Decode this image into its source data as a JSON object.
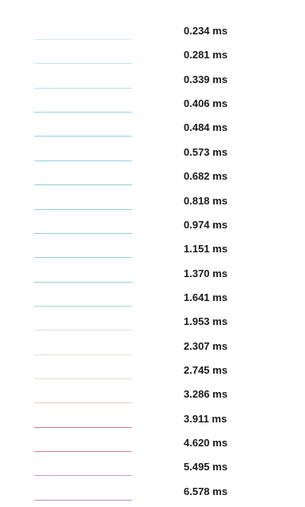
{
  "chart_data": {
    "type": "legend",
    "title": "",
    "entries": [
      {
        "label": "0.234 ms",
        "color": "#c6ecef"
      },
      {
        "label": "0.281 ms",
        "color": "#bde7ee"
      },
      {
        "label": "0.339 ms",
        "color": "#b3e2ec"
      },
      {
        "label": "0.406 ms",
        "color": "#98d3ea"
      },
      {
        "label": "0.484 ms",
        "color": "#8fcfea"
      },
      {
        "label": "0.573 ms",
        "color": "#91d1e8"
      },
      {
        "label": "0.682 ms",
        "color": "#8dcfd9"
      },
      {
        "label": "0.818 ms",
        "color": "#8dd0d2"
      },
      {
        "label": "0.974 ms",
        "color": "#8ccfc9"
      },
      {
        "label": "1.151 ms",
        "color": "#8fd0c8"
      },
      {
        "label": "1.370 ms",
        "color": "#97d3c9"
      },
      {
        "label": "1.641 ms",
        "color": "#a6d8cc"
      },
      {
        "label": "1.953 ms",
        "color": "#e8dde0"
      },
      {
        "label": "2.307 ms",
        "color": "#ecdcd9"
      },
      {
        "label": "2.745 ms",
        "color": "#e9d7d2"
      },
      {
        "label": "3.286 ms",
        "color": "#e7ccc7"
      },
      {
        "label": "3.911 ms",
        "color": "#cf7f86"
      },
      {
        "label": "4.620 ms",
        "color": "#d4868c"
      },
      {
        "label": "5.495 ms",
        "color": "#cb9cc6"
      },
      {
        "label": "6.578 ms",
        "color": "#b490cc"
      }
    ]
  }
}
